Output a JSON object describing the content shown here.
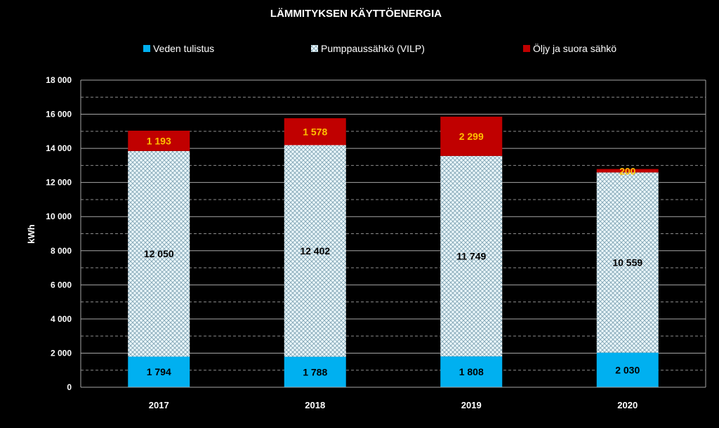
{
  "chart_data": {
    "type": "bar",
    "stacked": true,
    "title": "LÄMMITYKSEN KÄYTTÖENERGIA",
    "ylabel": "kWh",
    "xlabel": "",
    "ylim": [
      0,
      18000
    ],
    "yticks": [
      0,
      2000,
      4000,
      6000,
      8000,
      10000,
      12000,
      14000,
      16000,
      18000
    ],
    "ytick_labels": [
      "0",
      "2 000",
      "4 000",
      "6 000",
      "8 000",
      "10 000",
      "12 000",
      "14 000",
      "16 000",
      "18 000"
    ],
    "grid": true,
    "legend_position": "top",
    "categories": [
      "2017",
      "2018",
      "2019",
      "2020"
    ],
    "series": [
      {
        "name": "Veden tulistus",
        "values": [
          1794,
          1788,
          1808,
          2030
        ],
        "labels": [
          "1 794",
          "1 788",
          "1 808",
          "2 030"
        ],
        "color": "#00b0f0",
        "label_color": "#000000"
      },
      {
        "name": "Pumppaussähkö (VILP)",
        "values": [
          12050,
          12402,
          11749,
          10559
        ],
        "labels": [
          "12 050",
          "12 402",
          "11 749",
          "10 559"
        ],
        "color": "#daeef3",
        "pattern": "crosshatch",
        "label_color": "#000000"
      },
      {
        "name": "Öljy ja suora sähkö",
        "values": [
          1193,
          1578,
          2299,
          200
        ],
        "labels": [
          "1 193",
          "1 578",
          "2 299",
          "200"
        ],
        "color": "#c00000",
        "label_color": "#ffc000"
      }
    ]
  }
}
